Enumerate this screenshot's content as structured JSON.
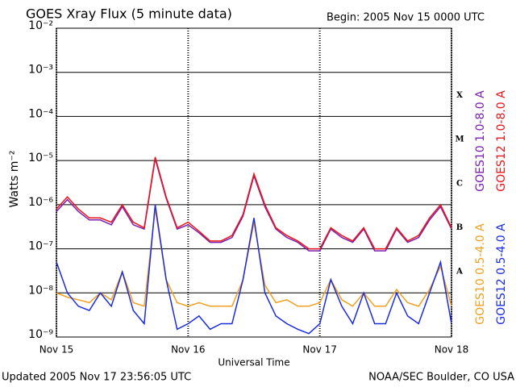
{
  "chart_data": {
    "type": "line",
    "title": "GOES Xray Flux (5 minute data)",
    "subtitle": "Begin:  2005 Nov 15 0000 UTC",
    "y_label": "Watts m⁻²",
    "x_label": "Universal Time",
    "footer_left": "Updated 2005 Nov 17 23:56:05 UTC",
    "footer_right": "NOAA/SEC Boulder, CO USA",
    "yscale": "log",
    "grid": true,
    "ylim": [
      1e-09,
      0.01
    ],
    "yticks": [
      {
        "value": 1e-09,
        "label": "10⁻⁹"
      },
      {
        "value": 1e-08,
        "label": "10⁻⁸"
      },
      {
        "value": 1e-07,
        "label": "10⁻⁷"
      },
      {
        "value": 1e-06,
        "label": "10⁻⁶"
      },
      {
        "value": 1e-05,
        "label": "10⁻⁵"
      },
      {
        "value": 0.0001,
        "label": "10⁻⁴"
      },
      {
        "value": 0.001,
        "label": "10⁻³"
      },
      {
        "value": 0.01,
        "label": "10⁻²"
      }
    ],
    "xlim": [
      0,
      72
    ],
    "xticks": [
      {
        "value": 0,
        "label": "Nov 15"
      },
      {
        "value": 24,
        "label": "Nov 16"
      },
      {
        "value": 48,
        "label": "Nov 17"
      },
      {
        "value": 72,
        "label": "Nov 18"
      }
    ],
    "annotations": [
      {
        "text": "A",
        "value": 3e-08
      },
      {
        "text": "B",
        "value": 3e-07
      },
      {
        "text": "C",
        "value": 3e-06
      },
      {
        "text": "M",
        "value": 3e-05
      },
      {
        "text": "X",
        "value": 0.0003
      }
    ],
    "x": [
      0,
      2,
      4,
      6,
      8,
      10,
      12,
      14,
      16,
      18,
      20,
      22,
      24,
      26,
      28,
      30,
      32,
      34,
      36,
      38,
      40,
      42,
      44,
      46,
      48,
      50,
      52,
      54,
      56,
      58,
      60,
      62,
      64,
      66,
      68,
      70,
      72
    ],
    "series": [
      {
        "name": "GOES10 1.0-8.0 A",
        "color": "#7a1fb0",
        "values": [
          7e-07,
          1.3e-06,
          7e-07,
          4.5e-07,
          4.5e-07,
          3.5e-07,
          9e-07,
          3.5e-07,
          2.8e-07,
          1.1e-05,
          1.4e-06,
          2.8e-07,
          3.5e-07,
          2.3e-07,
          1.4e-07,
          1.4e-07,
          1.8e-07,
          5.5e-07,
          4.5e-06,
          9e-07,
          2.8e-07,
          1.8e-07,
          1.4e-07,
          9e-08,
          9e-08,
          2.8e-07,
          1.8e-07,
          1.4e-07,
          2.8e-07,
          9e-08,
          9e-08,
          2.8e-07,
          1.4e-07,
          1.8e-07,
          4.5e-07,
          9e-07,
          2.8e-07
        ]
      },
      {
        "name": "GOES12 1.0-8.0 A",
        "color": "#e8141a",
        "values": [
          8e-07,
          1.5e-06,
          8e-07,
          5e-07,
          5e-07,
          4e-07,
          1e-06,
          4e-07,
          3e-07,
          1.2e-05,
          1.5e-06,
          3e-07,
          4e-07,
          2.5e-07,
          1.5e-07,
          1.5e-07,
          2e-07,
          6e-07,
          5e-06,
          1e-06,
          3e-07,
          2e-07,
          1.5e-07,
          1e-07,
          1e-07,
          3e-07,
          2e-07,
          1.5e-07,
          3e-07,
          1e-07,
          1e-07,
          3e-07,
          1.5e-07,
          2e-07,
          5e-07,
          1e-06,
          3e-07
        ]
      },
      {
        "name": "GOES10 0.5-4.0 A",
        "color": "#f0a020",
        "values": [
          1e-08,
          8e-09,
          7e-09,
          6e-09,
          1e-08,
          7e-09,
          3e-08,
          6e-09,
          5e-09,
          8e-07,
          2e-08,
          6e-09,
          5e-09,
          6e-09,
          5e-09,
          5e-09,
          5e-09,
          2e-08,
          4e-07,
          1.5e-08,
          6e-09,
          7e-09,
          5e-09,
          5e-09,
          6e-09,
          2e-08,
          7e-09,
          5e-09,
          1e-08,
          5e-09,
          5e-09,
          1.2e-08,
          6e-09,
          5e-09,
          1.2e-08,
          4e-08,
          5e-09
        ]
      },
      {
        "name": "GOES12 0.5-4.0 A",
        "color": "#1a2be0",
        "values": [
          5e-08,
          1e-08,
          5e-09,
          4e-09,
          1e-08,
          5e-09,
          3e-08,
          4e-09,
          2e-09,
          1e-06,
          2e-08,
          1.5e-09,
          2e-09,
          3e-09,
          1.5e-09,
          2e-09,
          2e-09,
          2e-08,
          5e-07,
          1e-08,
          3e-09,
          2e-09,
          1.5e-09,
          1.2e-09,
          2e-09,
          2e-08,
          5e-09,
          2e-09,
          1e-08,
          2e-09,
          2e-09,
          1e-08,
          3e-09,
          2e-09,
          1e-08,
          5e-08,
          2e-09
        ]
      }
    ]
  }
}
